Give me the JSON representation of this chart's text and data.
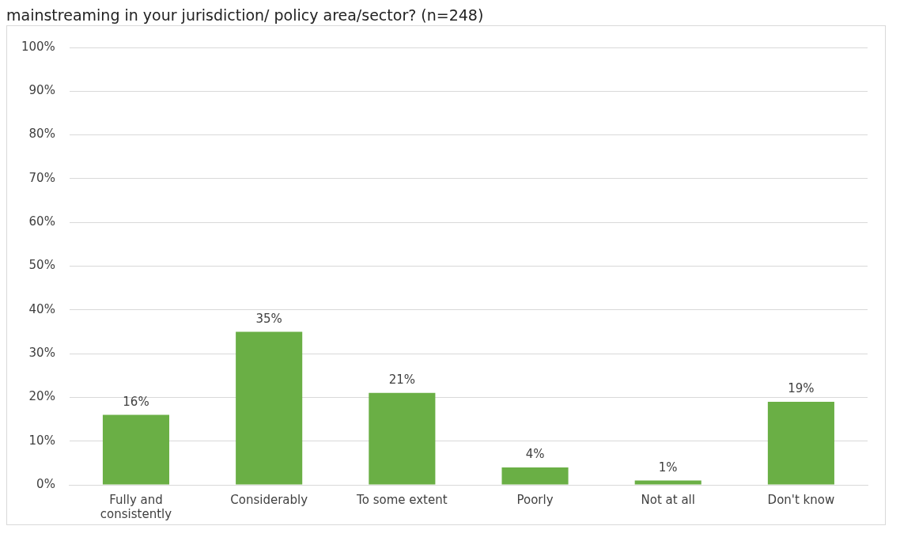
{
  "chart_data": {
    "type": "bar",
    "title": "mainstreaming in your jurisdiction/ policy area/sector? (n=248)",
    "categories": [
      "Fully and consistently",
      "Considerably",
      "To some extent",
      "Poorly",
      "Not at all",
      "Don't know"
    ],
    "values": [
      16,
      35,
      21,
      4,
      1,
      19
    ],
    "color": "#6aaf45",
    "ylim": [
      0,
      100
    ],
    "yticks": [
      {
        "value": 0,
        "label": "0%"
      },
      {
        "value": 10,
        "label": "10%"
      },
      {
        "value": 20,
        "label": "20%"
      },
      {
        "value": 30,
        "label": "30%"
      },
      {
        "value": 40,
        "label": "40%"
      },
      {
        "value": 50,
        "label": "50%"
      },
      {
        "value": 60,
        "label": "60%"
      },
      {
        "value": 70,
        "label": "70%"
      },
      {
        "value": 80,
        "label": "80%"
      },
      {
        "value": 90,
        "label": "90%"
      },
      {
        "value": 100,
        "label": "100%"
      }
    ],
    "value_labels": [
      "16%",
      "35%",
      "21%",
      "4%",
      "1%",
      "19%"
    ],
    "grid": "y",
    "legend": false
  }
}
